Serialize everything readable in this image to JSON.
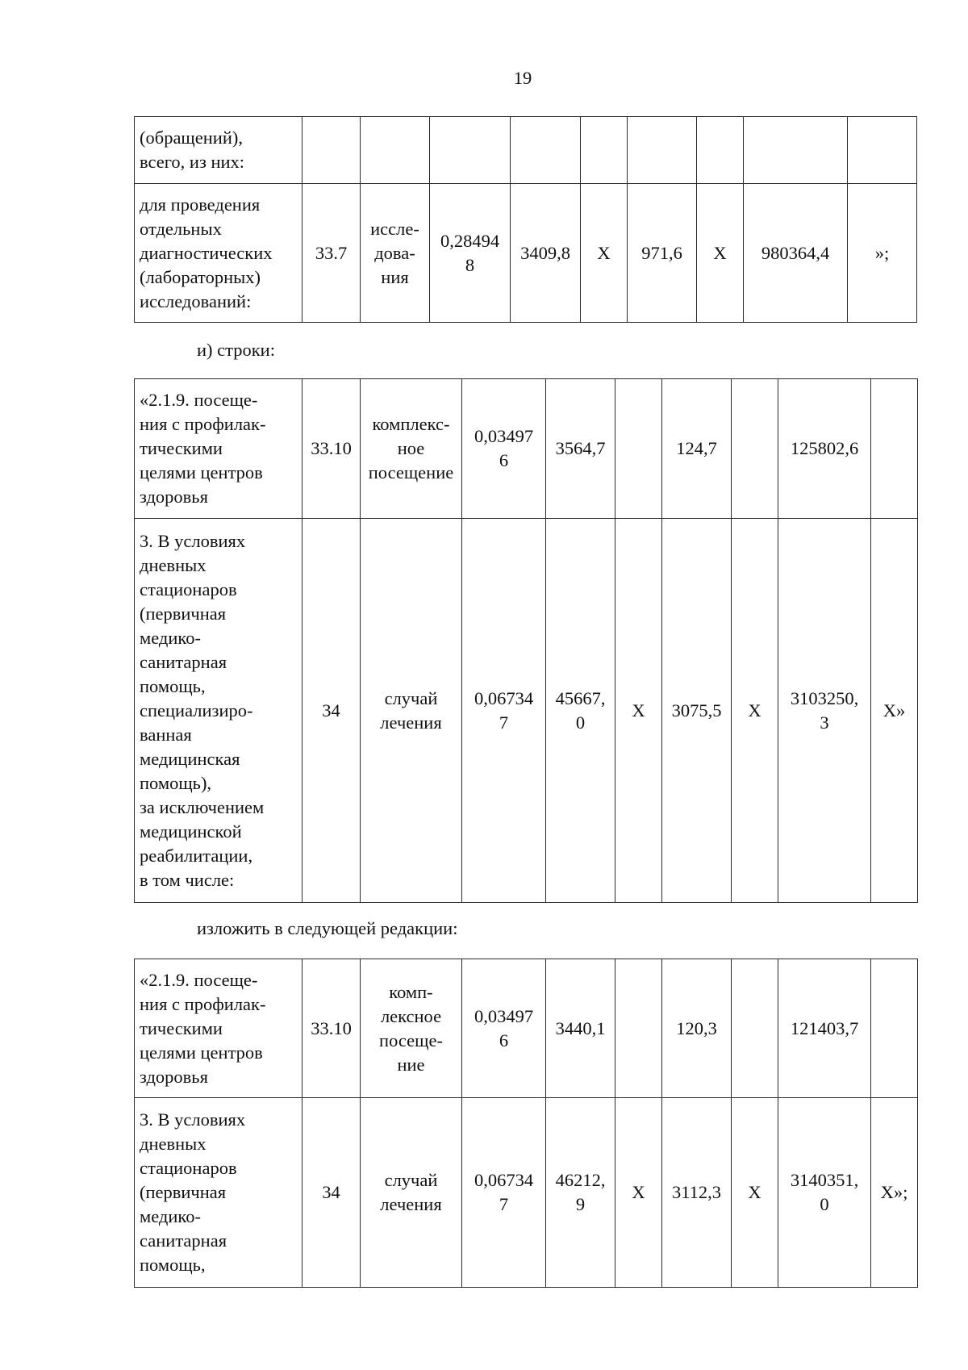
{
  "page_number": "19",
  "para_1": "и) строки:",
  "para_2": "изложить в следующей редакции:",
  "tables": [
    {
      "rows": [
        [
          "(обращений),\nвсего, из них:",
          "",
          "",
          "",
          "",
          "",
          "",
          "",
          "",
          ""
        ],
        [
          "для проведения\nотдельных\nдиагностических\n(лабораторных)\nисследований:",
          "33.7",
          "иссле-\nдова-\nния",
          "0,28494\n8",
          "3409,8",
          "Х",
          "971,6",
          "Х",
          "980364,4",
          "»;"
        ]
      ]
    },
    {
      "rows": [
        [
          "«2.1.9. посеще-\nния с профилак-\nтическими\nцелями центров\nздоровья",
          "33.10",
          "комплекс-\nное\nпосещение",
          "0,03497\n6",
          "3564,7",
          "",
          "124,7",
          "",
          "125802,6",
          ""
        ],
        [
          "3. В условиях\nдневных\nстационаров\n(первичная\nмедико-\nсанитарная\nпомощь,\nспециализиро-\nванная\nмедицинская\nпомощь),\nза исключением\nмедицинской\nреабилитации,\nв том числе:",
          "34",
          "случай\nлечения",
          "0,06734\n7",
          "45667,\n0",
          "Х",
          "3075,5",
          "Х",
          "3103250,\n3",
          "Х»"
        ]
      ]
    },
    {
      "rows": [
        [
          "«2.1.9. посеще-\nния с профилак-\nтическими\nцелями центров\nздоровья",
          "33.10",
          "комп-\nлексное\nпосеще-\nние",
          "0,03497\n6",
          "3440,1",
          "",
          "120,3",
          "",
          "121403,7",
          ""
        ],
        [
          "3. В условиях\nдневных\nстационаров\n(первичная\nмедико-\nсанитарная\nпомощь,",
          "34",
          "случай\nлечения",
          "0,06734\n7",
          "46212,\n9",
          "Х",
          "3112,3",
          "Х",
          "3140351,\n0",
          "Х»;"
        ]
      ]
    }
  ]
}
